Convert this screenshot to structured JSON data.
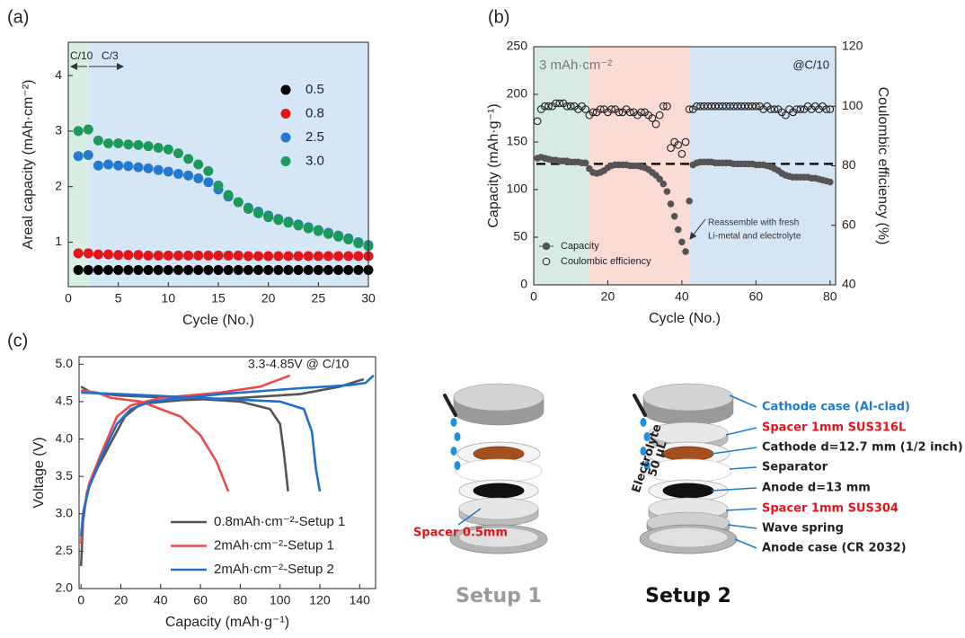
{
  "panel_labels": [
    "(a)",
    "(b)",
    "(c)"
  ],
  "chart_data": [
    {
      "type": "scatter",
      "xlabel": "Cycle (No.)",
      "ylabel": "Areal capacity (mAh·cm⁻²)",
      "xlim": [
        0,
        30
      ],
      "ylim": [
        0.2,
        4.6
      ],
      "xticks": [
        0,
        5,
        10,
        15,
        20,
        25,
        30
      ],
      "yticks": [
        1,
        2,
        3,
        4
      ],
      "legend": "upper right",
      "bands": [
        {
          "from": 0,
          "to": 2,
          "color": "#d8eee2"
        },
        {
          "from": 2,
          "to": 30,
          "color": "#d5e6f5"
        }
      ],
      "annotations": [
        "C/10",
        "C/3"
      ],
      "x": [
        1,
        2,
        3,
        4,
        5,
        6,
        7,
        8,
        9,
        10,
        11,
        12,
        13,
        14,
        15,
        16,
        17,
        18,
        19,
        20,
        21,
        22,
        23,
        24,
        25,
        26,
        27,
        28,
        29,
        30
      ],
      "series": [
        {
          "name": "0.5",
          "color": "#000000",
          "values": [
            0.5,
            0.5,
            0.5,
            0.5,
            0.5,
            0.5,
            0.5,
            0.5,
            0.5,
            0.5,
            0.5,
            0.5,
            0.5,
            0.5,
            0.5,
            0.5,
            0.5,
            0.5,
            0.5,
            0.5,
            0.5,
            0.5,
            0.5,
            0.5,
            0.5,
            0.5,
            0.5,
            0.5,
            0.5,
            0.5
          ]
        },
        {
          "name": "0.8",
          "color": "#e3141c",
          "values": [
            0.8,
            0.8,
            0.78,
            0.78,
            0.77,
            0.77,
            0.77,
            0.76,
            0.76,
            0.76,
            0.76,
            0.76,
            0.76,
            0.76,
            0.76,
            0.76,
            0.76,
            0.75,
            0.75,
            0.75,
            0.75,
            0.75,
            0.75,
            0.75,
            0.75,
            0.75,
            0.75,
            0.75,
            0.75,
            0.75
          ]
        },
        {
          "name": "2.5",
          "color": "#2479d0",
          "values": [
            2.55,
            2.57,
            2.38,
            2.4,
            2.38,
            2.37,
            2.35,
            2.33,
            2.3,
            2.27,
            2.23,
            2.2,
            2.15,
            2.08,
            1.95,
            1.82,
            1.72,
            1.62,
            1.55,
            1.48,
            1.42,
            1.37,
            1.32,
            1.27,
            1.22,
            1.17,
            1.12,
            1.07,
            1.0,
            0.95
          ]
        },
        {
          "name": "3.0",
          "color": "#1c9a5b",
          "values": [
            3.0,
            3.03,
            2.83,
            2.78,
            2.78,
            2.76,
            2.75,
            2.73,
            2.7,
            2.67,
            2.6,
            2.5,
            2.4,
            2.28,
            2.02,
            1.85,
            1.72,
            1.6,
            1.52,
            1.45,
            1.4,
            1.35,
            1.3,
            1.25,
            1.2,
            1.15,
            1.1,
            1.05,
            0.98,
            0.93
          ]
        }
      ]
    },
    {
      "type": "scatter",
      "xlabel": "Cycle (No.)",
      "ylabel": "Capacity (mAh·g⁻¹)",
      "y2label": "Coulombic efficiency (%)",
      "xlim": [
        0,
        81.5
      ],
      "ylim": [
        0,
        250
      ],
      "y2lim": [
        40,
        120
      ],
      "xticks": [
        0,
        20,
        40,
        60,
        80
      ],
      "yticks": [
        0,
        50,
        100,
        150,
        200,
        250
      ],
      "y2ticks": [
        40,
        60,
        80,
        100,
        120
      ],
      "legend": "lower left",
      "bands": [
        {
          "from": 0,
          "to": 15,
          "color": "#d6ece2"
        },
        {
          "from": 15,
          "to": 42,
          "color": "#fbdcd4"
        },
        {
          "from": 42,
          "to": 81.5,
          "color": "#d4e5f4"
        }
      ],
      "reference_line": {
        "value": 127
      },
      "annotations": [
        "3 mAh·cm⁻²",
        "@C/10",
        "Reassemble with fresh",
        "Li-metal and electrolyte"
      ],
      "x": [
        1,
        2,
        3,
        4,
        5,
        6,
        7,
        8,
        9,
        10,
        11,
        12,
        13,
        14,
        15,
        16,
        17,
        18,
        19,
        20,
        21,
        22,
        23,
        24,
        25,
        26,
        27,
        28,
        29,
        30,
        31,
        32,
        33,
        34,
        35,
        36,
        37,
        38,
        39,
        40,
        41,
        42,
        43,
        44,
        45,
        46,
        47,
        48,
        49,
        50,
        51,
        52,
        53,
        54,
        55,
        56,
        57,
        58,
        59,
        60,
        61,
        62,
        63,
        64,
        65,
        66,
        67,
        68,
        69,
        70,
        71,
        72,
        73,
        74,
        75,
        76,
        77,
        78,
        79,
        80
      ],
      "series": [
        {
          "name": "Capacity",
          "color": "#555555",
          "marker": "filled",
          "values": [
            133,
            134,
            133,
            132,
            131,
            131,
            130,
            130,
            130,
            129,
            129,
            129,
            128,
            128,
            122,
            118,
            117,
            118,
            120,
            123,
            125,
            126,
            126,
            126,
            126,
            125,
            125,
            125,
            124,
            123,
            121,
            118,
            115,
            111,
            106,
            98,
            85,
            72,
            58,
            45,
            35,
            88,
            126,
            128,
            129,
            129,
            129,
            129,
            128,
            128,
            128,
            128,
            128,
            127,
            127,
            127,
            127,
            127,
            127,
            126,
            126,
            126,
            125,
            124,
            122,
            120,
            117,
            115,
            114,
            113,
            113,
            113,
            113,
            113,
            112,
            112,
            111,
            110,
            109,
            108
          ]
        },
        {
          "name": "Coulombic efficiency",
          "color": "#222222",
          "marker": "open",
          "axis": "y2",
          "values": [
            95,
            99,
            100,
            100,
            100,
            101,
            101,
            101,
            100,
            100,
            100,
            99,
            100,
            99,
            97,
            98,
            98,
            99,
            99,
            98,
            99,
            99,
            98,
            98,
            99,
            98,
            98,
            97,
            98,
            98,
            97,
            96,
            94,
            97,
            100,
            100,
            86,
            88,
            87,
            84,
            88,
            99,
            99,
            100,
            100,
            100,
            100,
            100,
            100,
            100,
            100,
            100,
            100,
            100,
            100,
            100,
            100,
            100,
            100,
            100,
            100,
            99,
            100,
            99,
            99,
            99,
            98,
            97,
            99,
            98,
            99,
            99,
            99,
            100,
            99,
            100,
            99,
            100,
            99,
            99
          ]
        }
      ]
    },
    {
      "type": "line",
      "xlabel": "Capacity (mAh·g⁻¹)",
      "ylabel": "Voltage (V)",
      "xlim": [
        -1,
        148
      ],
      "ylim": [
        2.0,
        5.1
      ],
      "xticks": [
        0,
        20,
        40,
        60,
        80,
        100,
        120,
        140
      ],
      "yticks": [
        {
          "value": 2,
          "label": "2.0"
        },
        2.5,
        {
          "value": 3,
          "label": "3.0"
        },
        3.5,
        {
          "value": 4,
          "label": "4.0"
        },
        4.5,
        {
          "value": 5,
          "label": "5.0"
        }
      ],
      "legend": "lower right",
      "annotations": [
        "3.3-4.85V @ C/10"
      ],
      "series": [
        {
          "name": "0.8mAh·cm⁻²-Setup 1",
          "color": "#555555",
          "x": [
            0,
            1,
            3,
            8,
            15,
            22,
            30,
            50,
            80,
            110,
            130,
            142,
            null,
            0,
            5,
            20,
            50,
            80,
            95,
            100,
            102,
            104
          ],
          "values": [
            2.3,
            2.9,
            3.3,
            3.6,
            3.95,
            4.3,
            4.47,
            4.52,
            4.55,
            4.6,
            4.7,
            4.8,
            null,
            4.7,
            4.62,
            4.58,
            4.55,
            4.5,
            4.4,
            4.2,
            3.8,
            3.3
          ]
        },
        {
          "name": "2mAh·cm⁻²-Setup 1",
          "color": "#f0484a",
          "x": [
            0,
            1,
            4,
            10,
            18,
            25,
            40,
            70,
            90,
            105,
            null,
            0,
            8,
            15,
            30,
            50,
            60,
            68,
            74
          ],
          "values": [
            2.6,
            3.0,
            3.4,
            3.8,
            4.3,
            4.45,
            4.55,
            4.62,
            4.7,
            4.85,
            null,
            4.65,
            4.62,
            4.55,
            4.5,
            4.3,
            4.05,
            3.7,
            3.3
          ]
        },
        {
          "name": "2mAh·cm⁻²-Setup 2",
          "color": "#1e6fd0",
          "x": [
            0,
            1,
            4,
            10,
            18,
            25,
            35,
            70,
            110,
            135,
            143,
            147,
            null,
            0,
            20,
            60,
            100,
            112,
            116,
            118,
            120
          ],
          "values": [
            2.7,
            3.0,
            3.35,
            3.75,
            4.2,
            4.4,
            4.5,
            4.6,
            4.68,
            4.72,
            4.75,
            4.85,
            null,
            4.62,
            4.6,
            4.55,
            4.5,
            4.4,
            4.1,
            3.6,
            3.3
          ]
        }
      ]
    }
  ],
  "diagram": {
    "setup1": {
      "title": "Setup 1",
      "spacer": "Spacer 0.5mm"
    },
    "setup2": {
      "title": "Setup 2",
      "electrolyte": "Electrolyte",
      "volume": "50 µL",
      "labels": [
        "Cathode case (Al-clad)",
        "Spacer 1mm SUS316L",
        "Cathode d=12.7 mm (1/2 inch)",
        "Separator",
        "Anode d=13 mm",
        "Spacer 1mm SUS304",
        "Wave spring",
        "Anode case (CR 2032)"
      ]
    }
  }
}
